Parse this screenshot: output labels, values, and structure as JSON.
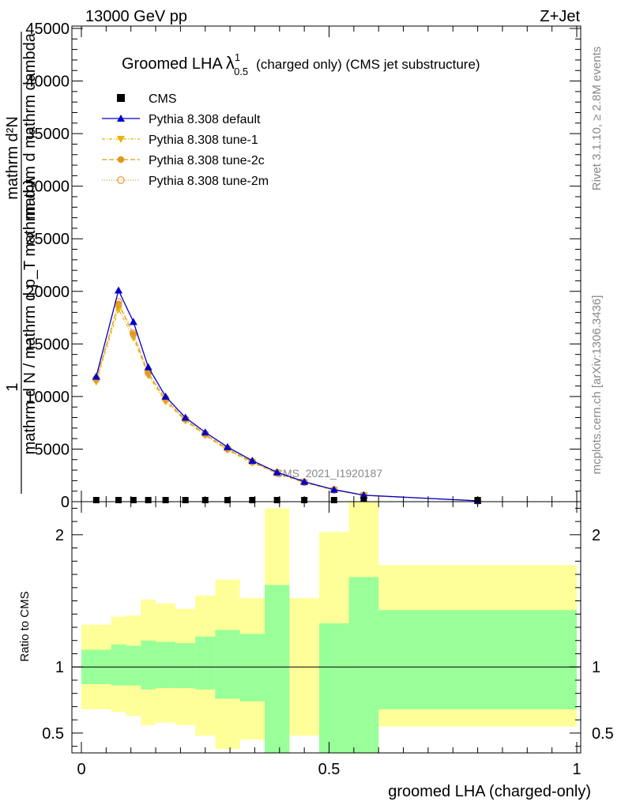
{
  "header": {
    "left": "13000 GeV pp",
    "right": "Z+Jet"
  },
  "side_labels": {
    "rivet": "Rivet 3.1.10, ≥ 2.8M events",
    "mcplots": "mcplots.cern.ch [arXiv:1306.3436]"
  },
  "chart_data": [
    {
      "type": "line",
      "title_main": "Groomed LHA",
      "title_lambda": "λ",
      "title_sup": "1",
      "title_sub": "0.5",
      "title_rest": "(charged only) (CMS jet substructure)",
      "ylabel_top": "mathrm d²N",
      "ylabel_one": "1",
      "ylabel_frac": "mathrm d N / mathrm d p_T mathrm d λ",
      "ylabel_extra": "mathrm d mathrm dambda",
      "watermark": "CMS_2021_I1920187",
      "xlim": [
        0,
        1
      ],
      "ylim": [
        0,
        45000
      ],
      "y_ticks": [
        0,
        5000,
        10000,
        15000,
        20000,
        25000,
        30000,
        35000,
        40000,
        45000
      ],
      "y_tick_labels": [
        "0",
        "5000",
        "10000",
        "15000",
        "20000",
        "25000",
        "30000",
        "35000",
        "40000",
        "45000"
      ],
      "cms": {
        "name": "CMS",
        "x": [
          0.03,
          0.075,
          0.105,
          0.135,
          0.17,
          0.21,
          0.25,
          0.295,
          0.345,
          0.395,
          0.45,
          0.51,
          0.57,
          0.8
        ],
        "y": [
          30,
          30,
          30,
          30,
          30,
          30,
          30,
          30,
          30,
          30,
          30,
          30,
          20,
          10
        ]
      },
      "series": [
        {
          "name": "Pythia 8.308 default",
          "color": "#0000cc",
          "marker": "triangle-up",
          "dash": "",
          "x": [
            0.03,
            0.075,
            0.105,
            0.135,
            0.17,
            0.21,
            0.25,
            0.295,
            0.345,
            0.395,
            0.45,
            0.51,
            0.57,
            0.8
          ],
          "y": [
            11900,
            20100,
            17100,
            12800,
            10000,
            8000,
            6600,
            5200,
            3900,
            2800,
            1900,
            1150,
            620,
            80
          ]
        },
        {
          "name": "Pythia 8.308 tune-1",
          "color": "#e8b400",
          "marker": "triangle-down",
          "dash": "4,2,1,2",
          "x": [
            0.03,
            0.075,
            0.105,
            0.135,
            0.17,
            0.21,
            0.25,
            0.295,
            0.345,
            0.395,
            0.45,
            0.51,
            0.57,
            0.8
          ],
          "y": [
            11400,
            18300,
            15600,
            12000,
            9500,
            7700,
            6300,
            4900,
            3700,
            2700,
            1800,
            1100,
            600,
            80
          ]
        },
        {
          "name": "Pythia 8.308 tune-2c",
          "color": "#e09a1a",
          "marker": "circle",
          "dash": "6,3",
          "x": [
            0.03,
            0.075,
            0.105,
            0.135,
            0.17,
            0.21,
            0.25,
            0.295,
            0.345,
            0.395,
            0.45,
            0.51,
            0.57,
            0.8
          ],
          "y": [
            11600,
            18800,
            15900,
            12200,
            9700,
            7800,
            6400,
            5000,
            3800,
            2750,
            1850,
            1120,
            600,
            80
          ]
        },
        {
          "name": "Pythia 8.308 tune-2m",
          "color": "#e8a040",
          "marker": "circle-open",
          "dash": "1,2",
          "x": [
            0.03,
            0.075,
            0.105,
            0.135,
            0.17,
            0.21,
            0.25,
            0.295,
            0.345,
            0.395,
            0.45,
            0.51,
            0.57,
            0.8
          ],
          "y": [
            11700,
            19000,
            16000,
            12300,
            9800,
            7850,
            6450,
            5050,
            3800,
            2750,
            1850,
            1120,
            600,
            80
          ]
        }
      ]
    },
    {
      "type": "area",
      "ylabel": "Ratio to CMS",
      "xlabel": "groomed LHA (charged-only)",
      "xlim": [
        0,
        1
      ],
      "ylim": [
        0.35,
        2.25
      ],
      "x_ticks": [
        0,
        0.5,
        1
      ],
      "x_tick_labels": [
        "0",
        "0.5",
        "1"
      ],
      "y_ticks": [
        0.5,
        1,
        2
      ],
      "y_tick_labels": [
        "0.5",
        "1",
        "2"
      ],
      "reference_line": 1,
      "bins": [
        0,
        0.06,
        0.09,
        0.12,
        0.15,
        0.19,
        0.23,
        0.27,
        0.32,
        0.37,
        0.42,
        0.48,
        0.54,
        0.6,
        1.0
      ],
      "green_band": {
        "color": "#99ff99",
        "upper": [
          1.13,
          1.17,
          1.16,
          1.2,
          1.19,
          1.18,
          1.23,
          1.28,
          1.25,
          1.62,
          0.0,
          1.33,
          1.68,
          1.43
        ],
        "lower": [
          0.87,
          0.86,
          0.86,
          0.83,
          0.84,
          0.84,
          0.83,
          0.76,
          0.74,
          0.0,
          0.0,
          0.0,
          0.0,
          0.68
        ]
      },
      "yellow_band": {
        "color": "#ffff99",
        "upper": [
          1.32,
          1.38,
          1.39,
          1.51,
          1.48,
          1.44,
          1.54,
          1.66,
          1.52,
          2.2,
          1.52,
          2.02,
          2.25,
          1.77
        ],
        "lower": [
          0.68,
          0.66,
          0.63,
          0.56,
          0.58,
          0.56,
          0.48,
          0.38,
          0.45,
          0.0,
          0.48,
          0.0,
          0.0,
          0.55
        ]
      }
    }
  ]
}
